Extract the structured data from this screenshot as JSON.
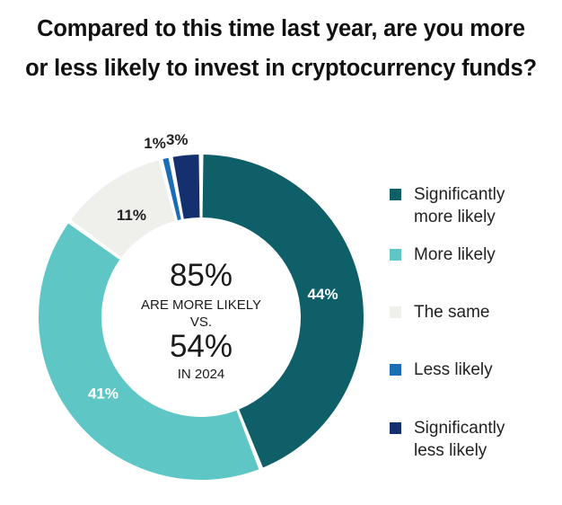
{
  "chart_data": {
    "type": "pie",
    "variant": "donut",
    "title_lines": [
      "Compared to this time last year, are you more",
      "or less likely to invest in cryptocurrency funds?"
    ],
    "slices": [
      {
        "label": "Significantly more likely",
        "value": 44,
        "display": "44%",
        "color": "#0f5f68",
        "label_color": "#ffffff",
        "label_position": "inside"
      },
      {
        "label": "More likely",
        "value": 41,
        "display": "41%",
        "color": "#5ec6c5",
        "label_color": "#ffffff",
        "label_position": "inside"
      },
      {
        "label": "The same",
        "value": 11,
        "display": "11%",
        "color": "#efefec",
        "label_color": "#222222",
        "label_position": "inside"
      },
      {
        "label": "Less likely",
        "value": 1,
        "display": "1%",
        "color": "#1b6db5",
        "label_color": "#222222",
        "label_position": "outside"
      },
      {
        "label": "Significantly less likely",
        "value": 3,
        "display": "3%",
        "color": "#15306e",
        "label_color": "#222222",
        "label_position": "outside"
      }
    ],
    "center": {
      "big1": "85%",
      "small1": "ARE MORE LIKELY",
      "small2": "VS.",
      "big2": "54%",
      "small3": "IN 2024"
    },
    "legend": {
      "placement": "right",
      "items": [
        {
          "lines": [
            "Significantly",
            "more likely"
          ],
          "color": "#0f5f68"
        },
        {
          "lines": [
            "More likely"
          ],
          "color": "#5ec6c5"
        },
        {
          "lines": [
            "The same"
          ],
          "color": "#efefec"
        },
        {
          "lines": [
            "Less likely"
          ],
          "color": "#1b6db5"
        },
        {
          "lines": [
            "Significantly",
            "less likely"
          ],
          "color": "#15306e"
        }
      ]
    }
  }
}
